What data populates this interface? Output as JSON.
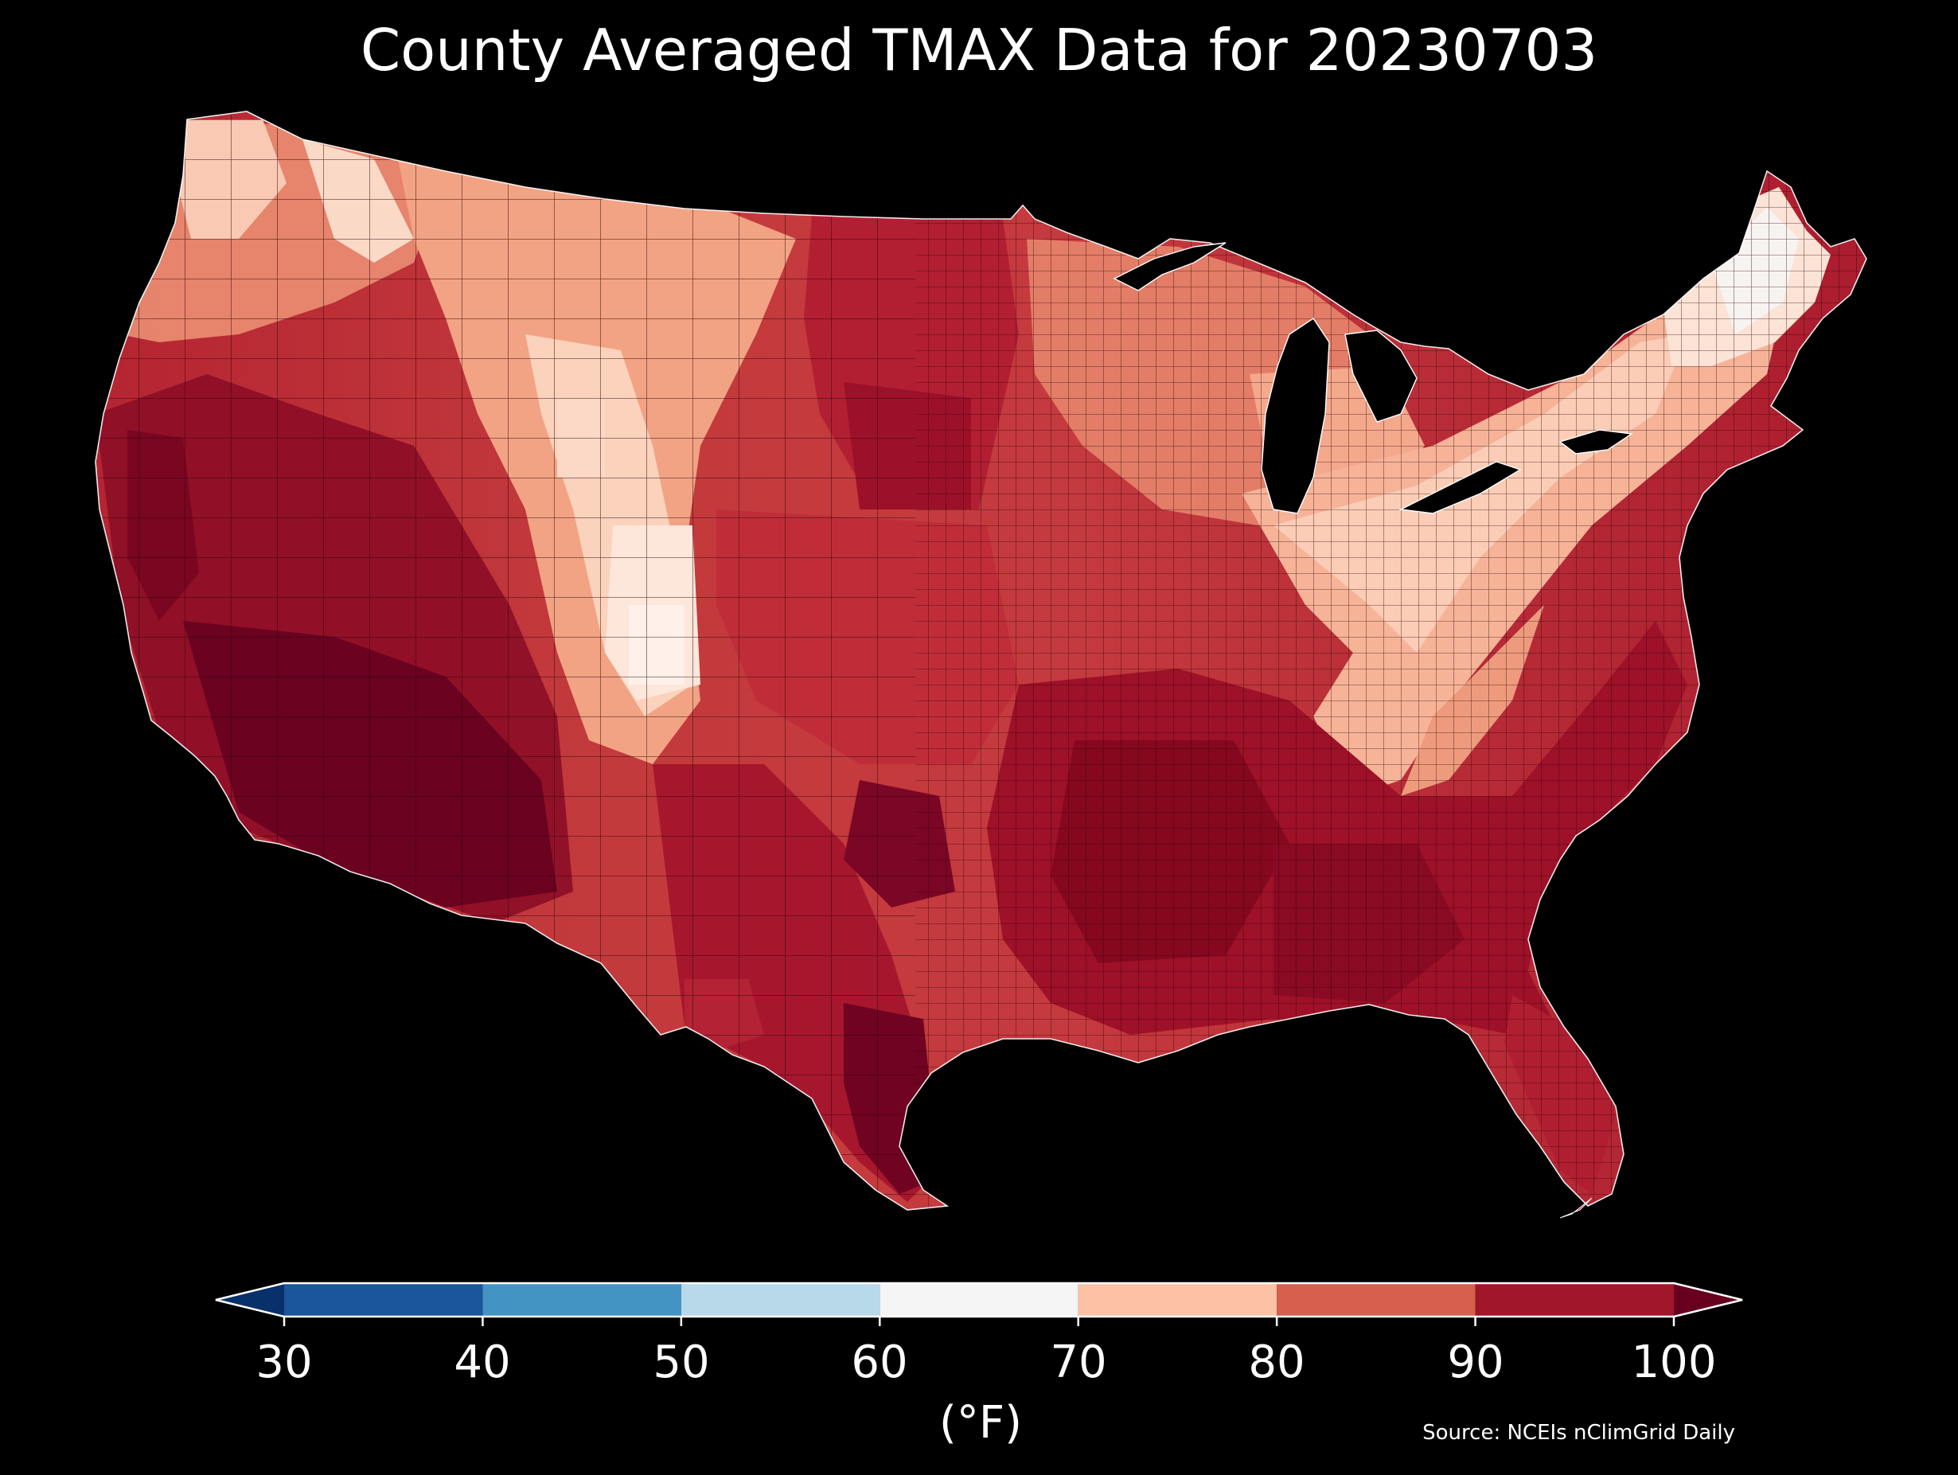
{
  "title": "County Averaged TMAX Data for 20230703",
  "colorbar": {
    "ticks": [
      "30",
      "40",
      "50",
      "60",
      "70",
      "80",
      "90",
      "100"
    ],
    "unit": "(°F)",
    "under_color": "#08306b",
    "over_color": "#67001f",
    "bins": [
      {
        "range": [
          30,
          40
        ],
        "color": "#1b559b"
      },
      {
        "range": [
          40,
          50
        ],
        "color": "#4393c3"
      },
      {
        "range": [
          50,
          60
        ],
        "color": "#b8d9ea"
      },
      {
        "range": [
          60,
          70
        ],
        "color": "#f5f5f5"
      },
      {
        "range": [
          70,
          80
        ],
        "color": "#fbc2a5"
      },
      {
        "range": [
          80,
          90
        ],
        "color": "#d6604d"
      },
      {
        "range": [
          90,
          100
        ],
        "color": "#a0162b"
      }
    ]
  },
  "source": "Source: NCEIs nClimGrid Daily",
  "map": {
    "background": "#000000",
    "border_color": "#1a0000",
    "lakes_color": "#000000"
  }
}
